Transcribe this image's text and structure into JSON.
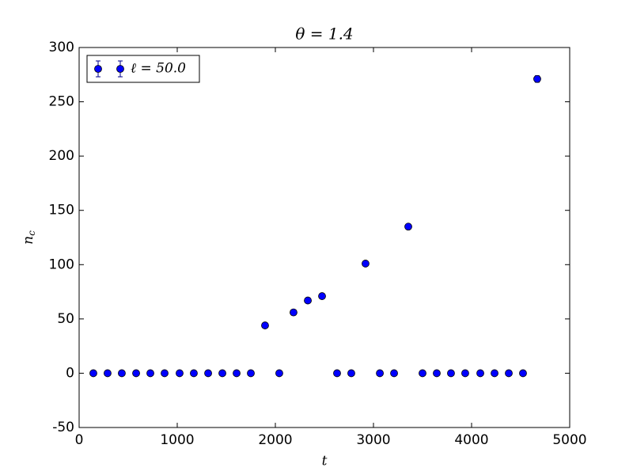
{
  "chart_data": {
    "type": "scatter",
    "title": "θ = 1.4",
    "xlabel": "t",
    "ylabel": [
      "n",
      "c"
    ],
    "x": [
      145,
      290,
      435,
      581,
      726,
      871,
      1024,
      1169,
      1315,
      1460,
      1605,
      1750,
      1895,
      2040,
      2185,
      2331,
      2476,
      2629,
      2774,
      2919,
      3065,
      3210,
      3355,
      3500,
      3645,
      3790,
      3935,
      4089,
      4234,
      4379,
      4524,
      4669
    ],
    "series": [
      {
        "name": "ℓ = 50.0",
        "color": "#0000ff",
        "values": [
          0,
          0,
          0,
          0,
          0,
          0,
          0,
          0,
          0,
          0,
          0,
          0,
          44,
          0,
          56,
          67,
          71,
          0,
          0,
          101,
          0,
          0,
          135,
          0,
          0,
          0,
          0,
          0,
          0,
          0,
          0,
          271
        ],
        "errors": [
          0,
          0,
          0,
          0,
          0,
          0,
          0,
          0,
          0,
          0,
          0,
          0,
          1,
          0,
          1,
          1,
          1,
          0,
          0,
          2,
          0,
          0,
          1,
          0,
          0,
          0,
          0,
          0,
          0,
          0,
          0,
          3
        ]
      }
    ],
    "xlim": [
      0,
      5000
    ],
    "xticks": [
      0,
      1000,
      2000,
      3000,
      4000,
      5000
    ],
    "ylim": [
      -50,
      300
    ],
    "yticks": [
      -50,
      0,
      50,
      100,
      150,
      200,
      250,
      300
    ],
    "legend": "upper-left"
  }
}
